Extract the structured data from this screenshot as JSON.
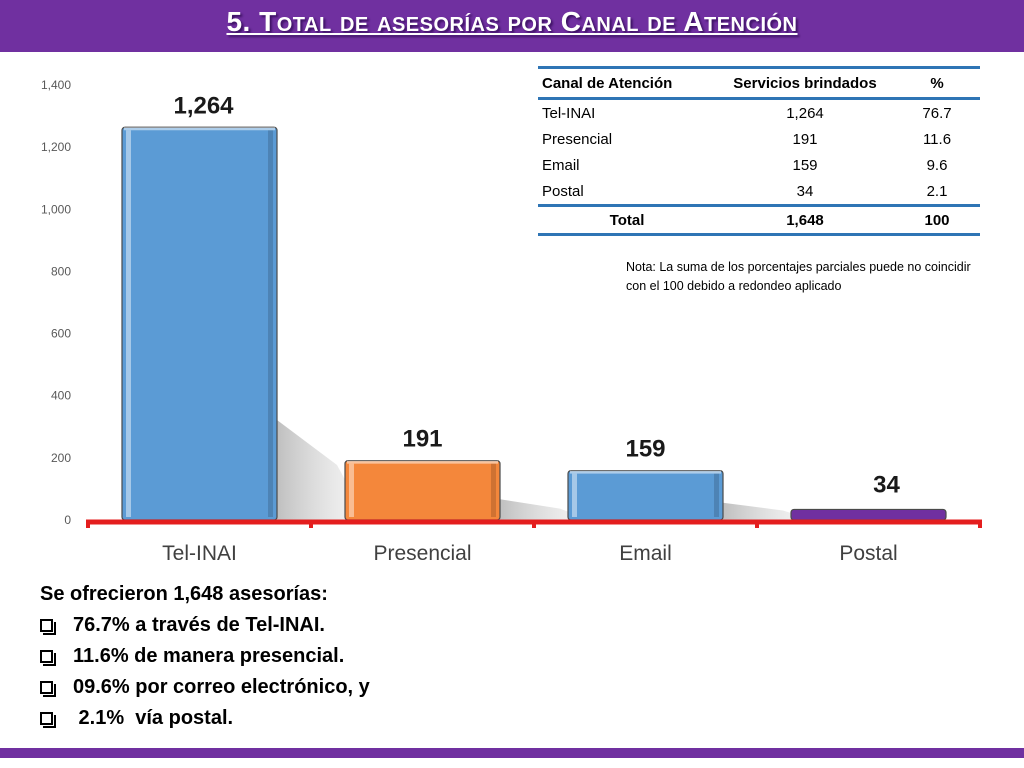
{
  "title": "5. Total de asesorías por Canal de Atención",
  "colors": {
    "header": "#7030A0",
    "axis": "#E41E1E",
    "table_rule": "#2F75B5"
  },
  "chart_data": {
    "type": "bar",
    "categories": [
      "Tel-INAI",
      "Presencial",
      "Email",
      "Postal"
    ],
    "values": [
      1264,
      191,
      159,
      34
    ],
    "value_labels": [
      "1,264",
      "191",
      "159",
      "34"
    ],
    "bar_colors": [
      "#5B9BD5",
      "#F4873B",
      "#5B9BD5",
      "#7030A0"
    ],
    "ylim": [
      0,
      1400
    ],
    "yticks": [
      0,
      200,
      400,
      600,
      800,
      1000,
      1200,
      1400
    ],
    "ytick_labels": [
      "0",
      "200",
      "400",
      "600",
      "800",
      "1,000",
      "1,200",
      "1,400"
    ],
    "grid": false,
    "xlabel": "",
    "ylabel": ""
  },
  "table": {
    "headers": [
      "Canal de Atención",
      "Servicios brindados",
      "%"
    ],
    "rows": [
      [
        "Tel-INAI",
        "1,264",
        "76.7"
      ],
      [
        "Presencial",
        "191",
        "11.6"
      ],
      [
        "Email",
        "159",
        "9.6"
      ],
      [
        "Postal",
        "34",
        "2.1"
      ]
    ],
    "total": [
      "Total",
      "1,648",
      "100"
    ]
  },
  "note": "Nota: La suma de los porcentajes parciales puede no coincidir con el 100 debido a redondeo aplicado",
  "summary": {
    "heading": "Se ofrecieron 1,648 asesorías:",
    "bullets": [
      "76.7% a través de Tel-INAI.",
      "11.6% de manera presencial.",
      "09.6% por correo electrónico, y",
      " 2.1%  vía postal."
    ],
    "bullet_icon": "checkbox-bullet-icon"
  }
}
